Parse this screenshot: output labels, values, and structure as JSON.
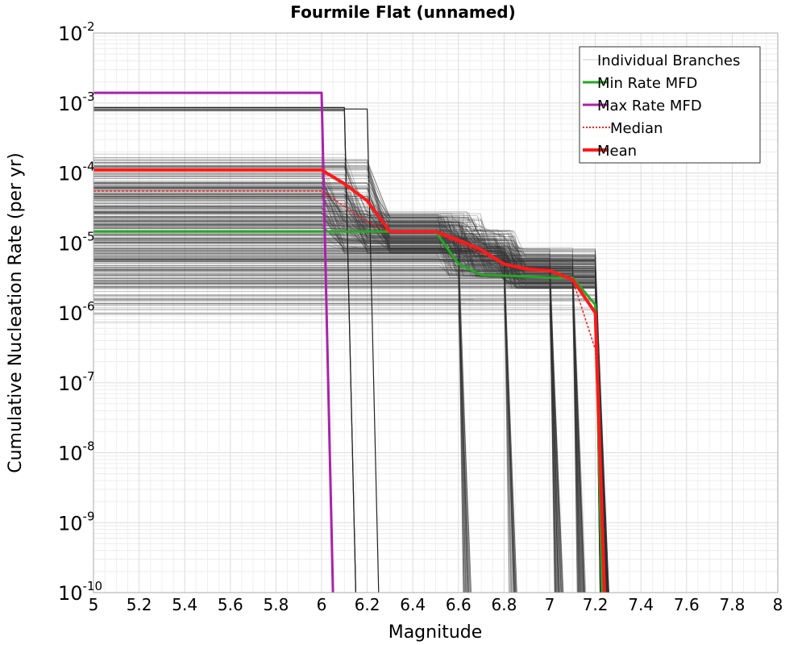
{
  "chart_data": {
    "type": "line",
    "title": "Fourmile Flat (unnamed)",
    "xlabel": "Magnitude",
    "ylabel": "Cumulative Nucleation Rate (per yr)",
    "xlim": [
      5,
      8
    ],
    "ylim_log10": [
      -10,
      -2
    ],
    "y_scale": "log",
    "x_ticks": [
      "5",
      "5.2",
      "5.4",
      "5.6",
      "5.8",
      "6",
      "6.2",
      "6.4",
      "6.6",
      "6.8",
      "7",
      "7.2",
      "7.4",
      "7.6",
      "7.8",
      "8"
    ],
    "y_tick_base": "10",
    "y_tick_exponents": [
      "-2",
      "-3",
      "-4",
      "-5",
      "-6",
      "-7",
      "-8",
      "-9",
      "-10"
    ],
    "grid": true,
    "legend": {
      "position": "top-right",
      "entries": [
        {
          "label": "Individual Branches",
          "color": "#bbbbbb",
          "style": "thin"
        },
        {
          "label": "Min Rate MFD",
          "color": "#22aa22",
          "style": "solid"
        },
        {
          "label": "Max Rate MFD",
          "color": "#aa22aa",
          "style": "solid"
        },
        {
          "label": "Median",
          "color": "#ff1a1a",
          "style": "dotted"
        },
        {
          "label": "Mean",
          "color": "#ff1a1a",
          "style": "thick"
        }
      ]
    },
    "series": [
      {
        "name": "Min Rate MFD",
        "color": "#22aa22",
        "x": [
          5,
          6.0,
          6.3,
          6.5,
          6.6,
          6.7,
          6.8,
          7.0,
          7.1,
          7.2,
          7.23
        ],
        "y": [
          1.45e-05,
          1.45e-05,
          1.45e-05,
          1.45e-05,
          5e-06,
          3.5e-06,
          3.4e-06,
          3.2e-06,
          3.2e-06,
          1.3e-06,
          1e-10
        ]
      },
      {
        "name": "Max Rate MFD",
        "color": "#aa22aa",
        "x": [
          5,
          6.0,
          6.05
        ],
        "y": [
          0.0014,
          0.0014,
          1e-10
        ]
      },
      {
        "name": "Median",
        "color": "#ff1a1a",
        "x": [
          5,
          6.0,
          6.2,
          6.3,
          6.5,
          6.6,
          6.8,
          7.0,
          7.1,
          7.2,
          7.24
        ],
        "y": [
          5.5e-05,
          5.5e-05,
          2e-05,
          1.45e-05,
          1.4e-05,
          1e-05,
          5e-06,
          4e-06,
          3e-06,
          3e-07,
          1e-10
        ]
      },
      {
        "name": "Mean",
        "color": "#ff1a1a",
        "x": [
          5,
          6.0,
          6.1,
          6.2,
          6.3,
          6.5,
          6.6,
          6.7,
          6.8,
          6.9,
          7.0,
          7.1,
          7.2,
          7.24
        ],
        "y": [
          0.00011,
          0.00011,
          7e-05,
          4e-05,
          1.45e-05,
          1.45e-05,
          1.1e-05,
          8e-06,
          5e-06,
          4.2e-06,
          4e-06,
          3e-06,
          1e-06,
          1e-10
        ]
      }
    ],
    "branches": {
      "name": "Individual Branches",
      "color": "#333333",
      "count": 360
    }
  }
}
